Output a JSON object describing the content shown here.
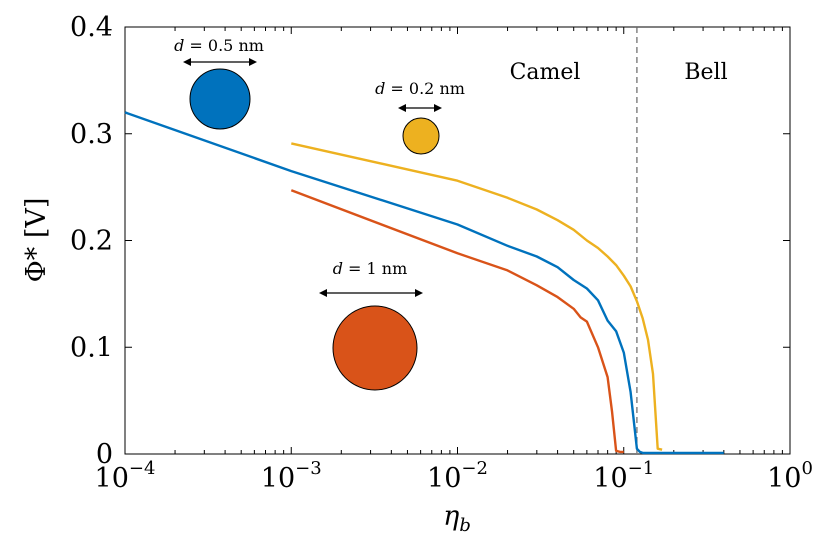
{
  "chart_data": {
    "type": "line",
    "xscale": "log",
    "xlabel": "η",
    "xlabel_sub": "b",
    "ylabel": "Φ* [V]",
    "xlim": [
      0.0001,
      1
    ],
    "ylim": [
      0,
      0.4
    ],
    "x_tick_values": [
      0.0001,
      0.001,
      0.01,
      0.1,
      1
    ],
    "x_tick_labels": [
      {
        "base": "10",
        "exp": "−4"
      },
      {
        "base": "10",
        "exp": "−3"
      },
      {
        "base": "10",
        "exp": "−2"
      },
      {
        "base": "10",
        "exp": "−1"
      },
      {
        "base": "10",
        "exp": "0"
      }
    ],
    "y_tick_values": [
      0,
      0.1,
      0.2,
      0.3,
      0.4
    ],
    "y_tick_labels": [
      "0",
      "0.1",
      "0.2",
      "0.3",
      "0.4"
    ],
    "grid": false,
    "threshold": {
      "x": 0.12,
      "style": "dashed",
      "left_label": "Camel",
      "right_label": "Bell"
    },
    "series": [
      {
        "name": "d = 0.5 nm",
        "color": "#0072BD",
        "x": [
          0.0001,
          0.001,
          0.01,
          0.02,
          0.03,
          0.04,
          0.05,
          0.06,
          0.07,
          0.08,
          0.09,
          0.1,
          0.11,
          0.12,
          0.125,
          0.13,
          0.2,
          0.4
        ],
        "y": [
          0.32,
          0.265,
          0.215,
          0.195,
          0.185,
          0.175,
          0.163,
          0.155,
          0.144,
          0.125,
          0.115,
          0.095,
          0.058,
          0.005,
          0.002,
          0.001,
          0.001,
          0.001
        ]
      },
      {
        "name": "d = 0.2 nm",
        "color": "#EDB120",
        "x": [
          0.001,
          0.01,
          0.02,
          0.03,
          0.04,
          0.05,
          0.06,
          0.07,
          0.08,
          0.09,
          0.1,
          0.11,
          0.12,
          0.13,
          0.14,
          0.15,
          0.16,
          0.17
        ],
        "y": [
          0.291,
          0.256,
          0.24,
          0.229,
          0.219,
          0.21,
          0.2,
          0.193,
          0.185,
          0.177,
          0.167,
          0.157,
          0.143,
          0.127,
          0.107,
          0.075,
          0.005,
          0.004
        ]
      },
      {
        "name": "d = 1 nm",
        "color": "#D95319",
        "x": [
          0.001,
          0.01,
          0.02,
          0.03,
          0.04,
          0.05,
          0.055,
          0.06,
          0.07,
          0.08,
          0.085,
          0.09,
          0.095,
          0.1
        ],
        "y": [
          0.247,
          0.188,
          0.172,
          0.158,
          0.147,
          0.136,
          0.128,
          0.124,
          0.1,
          0.072,
          0.04,
          0.003,
          0.002,
          0.002
        ]
      }
    ],
    "annotations": [
      {
        "label_var": "d",
        "label_rest": " = 0.5 nm",
        "color": "#0072BD",
        "kind": "large-circle"
      },
      {
        "label_var": "d",
        "label_rest": " = 0.2 nm",
        "color": "#EDB120",
        "kind": "small-circle"
      },
      {
        "label_var": "d",
        "label_rest": " = 1 nm",
        "color": "#D95319",
        "kind": "huge-circle"
      }
    ]
  }
}
